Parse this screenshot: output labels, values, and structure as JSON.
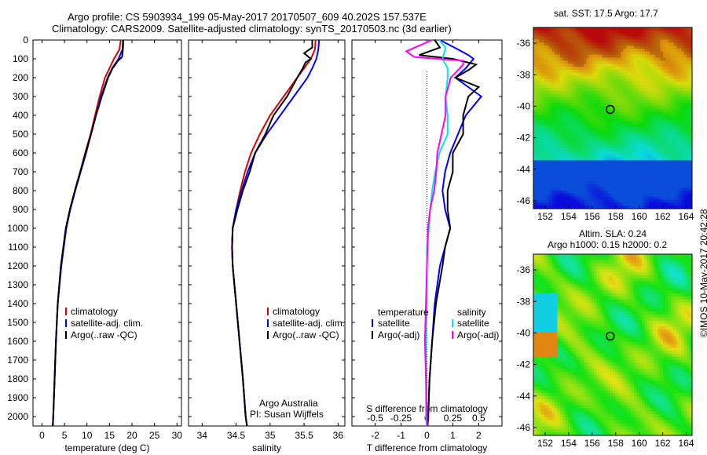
{
  "header": {
    "line1": "Argo profile: CS 5903934_199 05-May-2017 20170507_609 40.202S 157.537E",
    "line2": "Climatology: CARS2009. Satellite-adjusted climatology: synTS_20170503.nc (3d earlier)"
  },
  "colors": {
    "climatology": "#e00000",
    "satellite": "#0000ff",
    "argo": "#000000",
    "salinity_sat": "#00e5ee",
    "salinity_argo": "#ff00ff"
  },
  "chart_data": [
    {
      "type": "line",
      "id": "temperature",
      "xlabel": "temperature (deg C)",
      "ylabel": "",
      "xlim": [
        -2,
        31
      ],
      "ylim": [
        2050,
        0
      ],
      "xticks": [
        0,
        5,
        10,
        15,
        20,
        25,
        30
      ],
      "yticks": [
        0,
        100,
        200,
        300,
        400,
        500,
        600,
        700,
        800,
        900,
        1000,
        1100,
        1200,
        1300,
        1400,
        1500,
        1600,
        1700,
        1800,
        1900,
        2000
      ],
      "legend": [
        "climatology",
        "satellite-adj. clim.",
        "Argo(..raw -QC)"
      ],
      "series": [
        {
          "name": "climatology",
          "color": "#e00000",
          "depth": [
            0,
            50,
            100,
            150,
            200,
            300,
            400,
            500,
            600,
            700,
            800,
            900,
            1000,
            1200,
            1400,
            1600,
            1800,
            2000,
            2050
          ],
          "values": [
            17.5,
            17.2,
            16.0,
            15.0,
            14.0,
            12.8,
            11.8,
            10.8,
            9.6,
            8.5,
            7.3,
            6.2,
            5.3,
            4.2,
            3.5,
            3.1,
            2.8,
            2.5,
            2.4
          ]
        },
        {
          "name": "satellite-adj. clim.",
          "color": "#0000ff",
          "depth": [
            0,
            50,
            100,
            150,
            200,
            300,
            400,
            500,
            600,
            700,
            800,
            900,
            1000,
            1200,
            1400,
            1600,
            1800,
            2000,
            2050
          ],
          "values": [
            18.0,
            17.9,
            17.0,
            15.6,
            14.6,
            13.1,
            12.0,
            10.9,
            9.8,
            8.6,
            7.4,
            6.3,
            5.4,
            4.3,
            3.5,
            3.1,
            2.8,
            2.5,
            2.4
          ]
        },
        {
          "name": "Argo(..raw -QC)",
          "color": "#000000",
          "depth": [
            0,
            50,
            90,
            110,
            150,
            200,
            300,
            400,
            500,
            600,
            700,
            800,
            900,
            1000,
            1200,
            1400,
            1600,
            1800,
            2000,
            2050
          ],
          "values": [
            18.1,
            18.0,
            17.8,
            16.9,
            15.7,
            14.7,
            13.3,
            12.0,
            10.9,
            9.7,
            8.5,
            7.3,
            6.2,
            5.3,
            4.2,
            3.5,
            3.1,
            2.8,
            2.5,
            2.4
          ]
        }
      ]
    },
    {
      "type": "line",
      "id": "salinity",
      "xlabel": "salinity",
      "xlim": [
        33.8,
        36.1
      ],
      "ylim": [
        2050,
        0
      ],
      "xticks": [
        34,
        34.5,
        35,
        35.5,
        36
      ],
      "legend": [
        "climatology",
        "satellite-adj. clim.",
        "Argo(..raw -QC)"
      ],
      "annotation": [
        "Argo Australia",
        "PI: Susan Wijffels"
      ],
      "series": [
        {
          "name": "climatology",
          "color": "#e00000",
          "depth": [
            0,
            50,
            100,
            150,
            200,
            300,
            400,
            500,
            600,
            700,
            800,
            900,
            1000,
            1100,
            1200,
            1400,
            1600,
            1800,
            2000,
            2050
          ],
          "values": [
            35.67,
            35.66,
            35.6,
            35.5,
            35.4,
            35.2,
            35.0,
            34.85,
            34.72,
            34.63,
            34.56,
            34.5,
            34.45,
            34.44,
            34.45,
            34.5,
            34.55,
            34.6,
            34.64,
            34.66
          ]
        },
        {
          "name": "satellite-adj. clim.",
          "color": "#0000ff",
          "depth": [
            0,
            50,
            100,
            150,
            200,
            300,
            400,
            500,
            600,
            700,
            800,
            900,
            1000,
            1100,
            1200,
            1400,
            1600,
            1800,
            2000,
            2050
          ],
          "values": [
            35.72,
            35.71,
            35.68,
            35.62,
            35.55,
            35.35,
            35.15,
            34.95,
            34.78,
            34.67,
            34.58,
            34.5,
            34.45,
            34.44,
            34.45,
            34.5,
            34.55,
            34.6,
            34.64,
            34.66
          ]
        },
        {
          "name": "Argo(..raw -QC)",
          "color": "#000000",
          "depth": [
            0,
            40,
            70,
            100,
            120,
            150,
            200,
            300,
            400,
            500,
            600,
            700,
            800,
            900,
            1000,
            1100,
            1200,
            1400,
            1600,
            1800,
            2000,
            2050
          ],
          "values": [
            35.62,
            35.62,
            35.5,
            35.6,
            35.52,
            35.48,
            35.4,
            35.25,
            35.05,
            34.93,
            34.78,
            34.7,
            34.6,
            34.52,
            34.45,
            34.44,
            34.45,
            34.5,
            34.55,
            34.6,
            34.64,
            34.66
          ]
        }
      ]
    },
    {
      "type": "line",
      "id": "differences",
      "xlabel": "T difference from climatology",
      "xlabel_top": "S difference from climatology",
      "xlim": [
        -2.9,
        2.9
      ],
      "ylim": [
        2050,
        0
      ],
      "xticks": [
        -2,
        -1,
        0,
        1,
        2
      ],
      "xticks_top": [
        -0.5,
        -0.25,
        0,
        0.25,
        0.5
      ],
      "legend": {
        "left_title": "temperature",
        "left": [
          "satellite",
          "Argo(-adj)"
        ],
        "right_title": "salinity",
        "right": [
          "satellite",
          "Argo(-adj)"
        ]
      },
      "series": [
        {
          "name": "T satellite",
          "color": "#0000ff",
          "depth": [
            0,
            50,
            80,
            100,
            150,
            200,
            250,
            300,
            400,
            500,
            600,
            700,
            800,
            900,
            1000,
            1100,
            1200,
            1400,
            1600,
            1800,
            2000,
            2050
          ],
          "values": [
            0.5,
            1.2,
            1.6,
            1.8,
            1.5,
            1.1,
            1.6,
            2.1,
            1.5,
            1.2,
            0.9,
            0.7,
            0.6,
            0.7,
            0.9,
            0.7,
            0.5,
            0.3,
            0.2,
            0.1,
            0.05,
            0.02
          ]
        },
        {
          "name": "T Argo(-adj)",
          "color": "#000000",
          "depth": [
            0,
            40,
            80,
            100,
            130,
            160,
            200,
            250,
            300,
            400,
            500,
            600,
            700,
            800,
            900,
            1000,
            1100,
            1200,
            1400,
            1600,
            1800,
            2000,
            2050
          ],
          "values": [
            0.3,
            0.5,
            -0.3,
            1.0,
            1.9,
            1.6,
            1.1,
            2.0,
            1.6,
            1.4,
            1.4,
            1.0,
            1.0,
            0.8,
            0.8,
            0.9,
            0.7,
            0.6,
            0.35,
            0.2,
            0.1,
            0.05,
            0.02
          ]
        },
        {
          "name": "S satellite",
          "color": "#00e5ee",
          "depth": [
            0,
            40,
            80,
            100,
            150,
            200,
            300,
            400,
            500,
            600,
            700,
            800,
            900,
            1000,
            1100,
            1200,
            1400,
            1600,
            1800,
            2000,
            2050
          ],
          "values": [
            0.12,
            0.18,
            0.16,
            0.15,
            0.2,
            0.2,
            0.18,
            0.2,
            0.2,
            0.12,
            0.08,
            0.05,
            0.03,
            0.02,
            0.0,
            0.0,
            0.0,
            -0.01,
            -0.01,
            -0.01,
            0.0
          ]
        },
        {
          "name": "S Argo(-adj)",
          "color": "#ff00ff",
          "depth": [
            0,
            60,
            80,
            90,
            100,
            110,
            130,
            160,
            200,
            300,
            400,
            500,
            600,
            700,
            800,
            900,
            1000,
            1200,
            1400,
            1600,
            1800,
            2000,
            2050
          ],
          "values": [
            0.05,
            -0.2,
            -0.15,
            -0.12,
            0.1,
            0.35,
            0.35,
            0.3,
            0.23,
            0.18,
            0.18,
            0.14,
            0.1,
            0.09,
            0.07,
            0.03,
            0.01,
            0.0,
            -0.01,
            -0.02,
            -0.01,
            0.0,
            0.0
          ]
        }
      ]
    },
    {
      "type": "heatmap",
      "id": "sst_map",
      "title": "sat. SST: 17.5  Argo: 17.7",
      "xlim": [
        151,
        164.5
      ],
      "ylim": [
        -46.5,
        -35
      ],
      "xticks": [
        152,
        154,
        156,
        158,
        160,
        162,
        164
      ],
      "yticks": [
        -36,
        -38,
        -40,
        -42,
        -44,
        -46
      ],
      "marker": {
        "lon": 157.537,
        "lat": -40.202
      }
    },
    {
      "type": "heatmap",
      "id": "sla_map",
      "title": [
        "Altim. SLA: 0.24",
        "Argo h1000: 0.15  h2000: 0.2"
      ],
      "xlim": [
        151,
        164.5
      ],
      "ylim": [
        -46.5,
        -35
      ],
      "xticks": [
        152,
        154,
        156,
        158,
        160,
        162,
        164
      ],
      "yticks": [
        -36,
        -38,
        -40,
        -42,
        -44,
        -46
      ],
      "marker": {
        "lon": 157.537,
        "lat": -40.202
      }
    }
  ],
  "credit": "©IMOS 10-May-2017 20:42:28"
}
